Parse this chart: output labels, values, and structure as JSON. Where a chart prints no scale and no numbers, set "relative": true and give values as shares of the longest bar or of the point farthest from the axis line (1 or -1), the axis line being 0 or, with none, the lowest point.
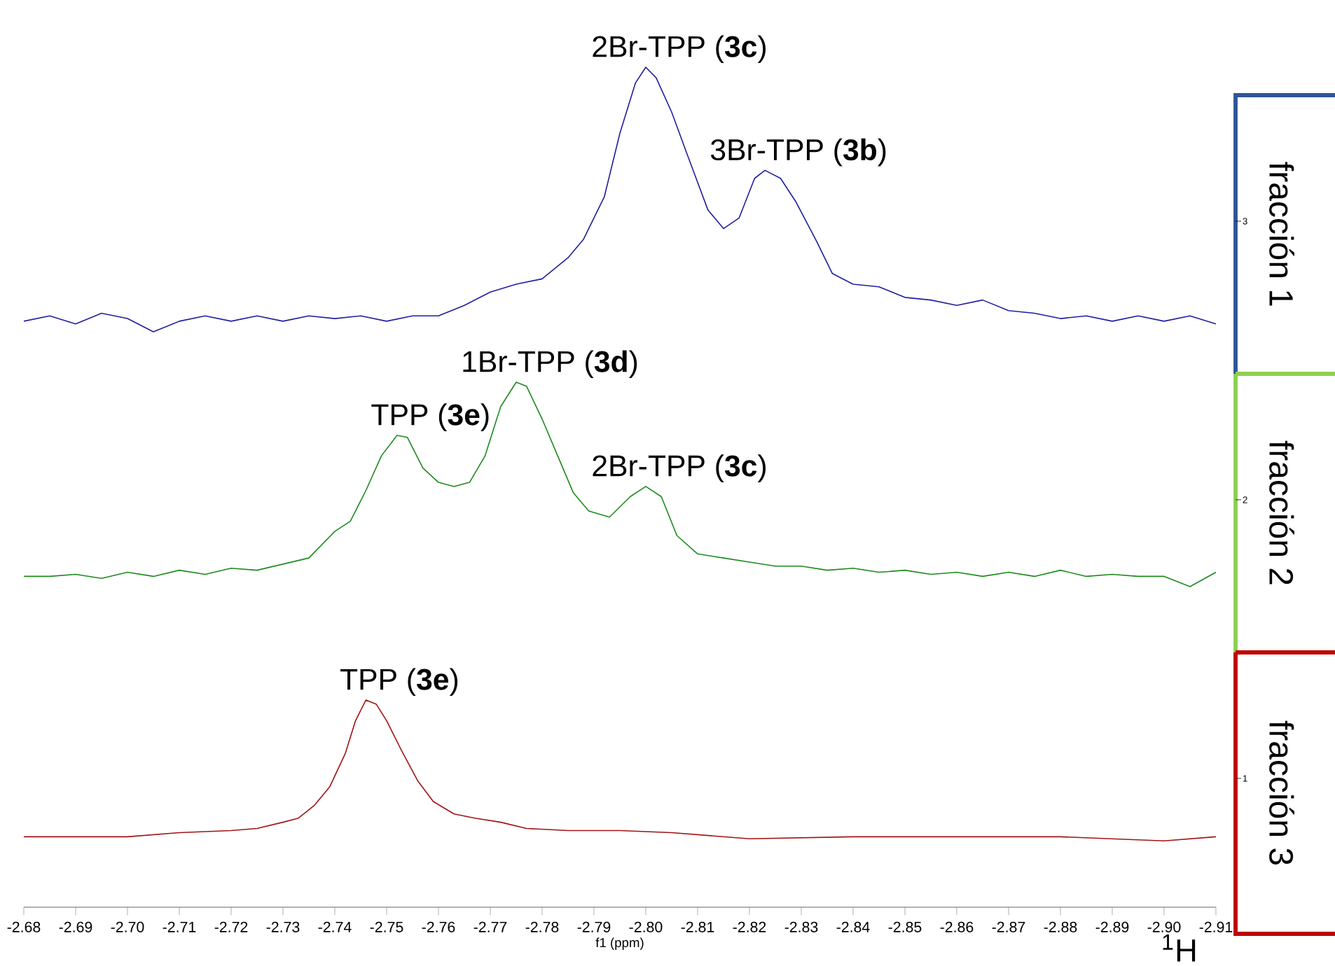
{
  "chart_data": [
    {
      "type": "line",
      "relative": true,
      "color": "#1f1f9e",
      "ylabel": "fracción 1",
      "tick_labels": false,
      "xlim": [
        -2.68,
        -2.91
      ],
      "x": [
        -2.68,
        -2.685,
        -2.69,
        -2.695,
        -2.7,
        -2.705,
        -2.71,
        -2.715,
        -2.72,
        -2.725,
        -2.73,
        -2.735,
        -2.74,
        -2.745,
        -2.75,
        -2.755,
        -2.76,
        -2.765,
        -2.77,
        -2.775,
        -2.78,
        -2.785,
        -2.788,
        -2.792,
        -2.795,
        -2.798,
        -2.8,
        -2.802,
        -2.805,
        -2.808,
        -2.812,
        -2.815,
        -2.818,
        -2.821,
        -2.823,
        -2.826,
        -2.829,
        -2.833,
        -2.836,
        -2.84,
        -2.845,
        -2.85,
        -2.855,
        -2.86,
        -2.865,
        -2.87,
        -2.875,
        -2.88,
        -2.885,
        -2.89,
        -2.895,
        -2.9,
        -2.905,
        -2.91
      ],
      "values": [
        0.04,
        0.06,
        0.03,
        0.07,
        0.05,
        0.0,
        0.04,
        0.06,
        0.04,
        0.06,
        0.04,
        0.06,
        0.05,
        0.06,
        0.04,
        0.06,
        0.06,
        0.1,
        0.15,
        0.18,
        0.2,
        0.28,
        0.35,
        0.51,
        0.75,
        0.94,
        1.0,
        0.96,
        0.83,
        0.67,
        0.46,
        0.39,
        0.43,
        0.58,
        0.61,
        0.58,
        0.49,
        0.34,
        0.22,
        0.18,
        0.17,
        0.13,
        0.12,
        0.1,
        0.12,
        0.08,
        0.07,
        0.05,
        0.06,
        0.04,
        0.06,
        0.04,
        0.06,
        0.03
      ],
      "annotations": [
        {
          "text": "2Br-TPP (**3c**)",
          "x": -2.8,
          "y": 1.0
        },
        {
          "text": "3Br-TPP (**3b**)",
          "x": -2.823,
          "y": 0.61
        },
        "3"
      ]
    },
    {
      "type": "line",
      "relative": true,
      "color": "#1e8a1e",
      "ylabel": "fracción 2",
      "tick_labels": false,
      "xlim": [
        -2.68,
        -2.91
      ],
      "x": [
        -2.68,
        -2.685,
        -2.69,
        -2.695,
        -2.7,
        -2.705,
        -2.71,
        -2.715,
        -2.72,
        -2.725,
        -2.73,
        -2.735,
        -2.74,
        -2.743,
        -2.746,
        -2.749,
        -2.752,
        -2.754,
        -2.757,
        -2.76,
        -2.763,
        -2.766,
        -2.769,
        -2.772,
        -2.775,
        -2.777,
        -2.78,
        -2.783,
        -2.786,
        -2.789,
        -2.793,
        -2.797,
        -2.8,
        -2.803,
        -2.806,
        -2.81,
        -2.815,
        -2.82,
        -2.825,
        -2.83,
        -2.835,
        -2.84,
        -2.845,
        -2.85,
        -2.855,
        -2.86,
        -2.865,
        -2.87,
        -2.875,
        -2.88,
        -2.885,
        -2.89,
        -2.895,
        -2.9,
        -2.905,
        -2.91
      ],
      "values": [
        0.05,
        0.05,
        0.06,
        0.04,
        0.07,
        0.05,
        0.08,
        0.06,
        0.09,
        0.08,
        0.11,
        0.14,
        0.27,
        0.32,
        0.47,
        0.64,
        0.74,
        0.73,
        0.58,
        0.51,
        0.49,
        0.51,
        0.64,
        0.88,
        1.0,
        0.98,
        0.82,
        0.64,
        0.46,
        0.37,
        0.34,
        0.44,
        0.49,
        0.44,
        0.25,
        0.16,
        0.14,
        0.12,
        0.1,
        0.1,
        0.08,
        0.09,
        0.07,
        0.08,
        0.06,
        0.07,
        0.05,
        0.07,
        0.05,
        0.08,
        0.05,
        0.06,
        0.05,
        0.05,
        0.0,
        0.07
      ],
      "annotations": [
        {
          "text": "TPP (**3e**)",
          "x": -2.752,
          "y": 0.74
        },
        {
          "text": "1Br-TPP (**3d**)",
          "x": -2.775,
          "y": 1.0
        },
        {
          "text": "2Br-TPP (**3c**)",
          "x": -2.8,
          "y": 0.49
        },
        "2"
      ]
    },
    {
      "type": "line",
      "relative": true,
      "color": "#a01414",
      "ylabel": "fracción 3",
      "xlabel": "f1 (ppm)",
      "tick_labels": "x",
      "xlim": [
        -2.68,
        -2.91
      ],
      "xticks": [
        -2.68,
        -2.69,
        {
          "value": -2.7,
          "label": "-2.70"
        },
        -2.71,
        -2.72,
        -2.73,
        -2.74,
        -2.75,
        -2.76,
        -2.77,
        -2.78,
        -2.79,
        {
          "value": -2.8,
          "label": "-2.80"
        },
        -2.81,
        -2.82,
        -2.83,
        -2.84,
        -2.85,
        -2.86,
        -2.87,
        -2.88,
        -2.89,
        {
          "value": -2.9,
          "label": "-2.90"
        },
        -2.91
      ],
      "x": [
        -2.68,
        -2.69,
        -2.7,
        -2.71,
        -2.72,
        -2.725,
        -2.73,
        -2.733,
        -2.736,
        -2.739,
        -2.742,
        -2.744,
        -2.746,
        -2.748,
        -2.75,
        -2.753,
        -2.756,
        -2.759,
        -2.763,
        -2.767,
        -2.772,
        -2.777,
        -2.785,
        -2.795,
        -2.805,
        -2.82,
        -2.84,
        -2.86,
        -2.88,
        -2.9,
        -2.91
      ],
      "values": [
        0.34,
        0.34,
        0.34,
        0.36,
        0.37,
        0.38,
        0.41,
        0.43,
        0.49,
        0.58,
        0.74,
        0.9,
        1.0,
        0.98,
        0.9,
        0.75,
        0.61,
        0.51,
        0.45,
        0.43,
        0.41,
        0.38,
        0.37,
        0.37,
        0.36,
        0.33,
        0.34,
        0.34,
        0.34,
        0.32,
        0.34
      ],
      "annotations": [
        {
          "text": "TPP (**3e**)",
          "x": -2.746,
          "y": 1.0
        },
        "1",
        "$^{1}$H"
      ]
    }
  ]
}
